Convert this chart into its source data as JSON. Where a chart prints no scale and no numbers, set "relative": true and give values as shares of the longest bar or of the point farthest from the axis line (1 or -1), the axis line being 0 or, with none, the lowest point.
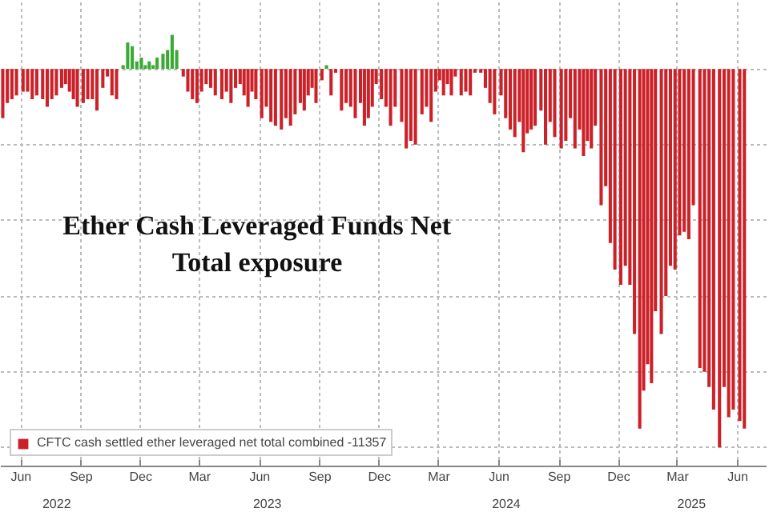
{
  "chart_data": {
    "type": "bar",
    "relative": true,
    "title": "Ether Cash Leveraged Funds Net\nTotal exposure",
    "x": [
      "2022-05-04",
      "2022-05-11",
      "2022-05-18",
      "2022-05-25",
      "2022-06-04",
      "2022-06-11",
      "2022-06-18",
      "2022-06-25",
      "2022-07-04",
      "2022-07-11",
      "2022-07-18",
      "2022-07-25",
      "2022-08-02",
      "2022-08-08",
      "2022-08-14",
      "2022-08-20",
      "2022-08-26",
      "2022-09-04",
      "2022-09-11",
      "2022-09-18",
      "2022-09-25",
      "2022-10-04",
      "2022-10-11",
      "2022-10-18",
      "2022-10-25",
      "2022-11-04",
      "2022-11-11",
      "2022-11-18",
      "2022-11-25",
      "2022-12-02",
      "2022-12-08",
      "2022-12-14",
      "2022-12-20",
      "2022-12-26",
      "2023-01-04",
      "2023-01-11",
      "2023-01-18",
      "2023-01-25",
      "2023-02-04",
      "2023-02-11",
      "2023-02-18",
      "2023-02-25",
      "2023-03-04",
      "2023-03-11",
      "2023-03-18",
      "2023-03-25",
      "2023-04-04",
      "2023-04-11",
      "2023-04-18",
      "2023-04-25",
      "2023-05-02",
      "2023-05-08",
      "2023-05-14",
      "2023-05-20",
      "2023-05-26",
      "2023-06-04",
      "2023-06-11",
      "2023-06-18",
      "2023-06-25",
      "2023-07-04",
      "2023-07-11",
      "2023-07-18",
      "2023-07-25",
      "2023-08-02",
      "2023-08-08",
      "2023-08-14",
      "2023-08-20",
      "2023-08-26",
      "2023-09-04",
      "2023-09-11",
      "2023-09-18",
      "2023-09-25",
      "2023-10-04",
      "2023-10-11",
      "2023-10-18",
      "2023-10-25",
      "2023-11-02",
      "2023-11-08",
      "2023-11-14",
      "2023-11-20",
      "2023-11-26",
      "2023-12-04",
      "2023-12-11",
      "2023-12-18",
      "2023-12-25",
      "2024-01-04",
      "2024-01-11",
      "2024-01-18",
      "2024-01-25",
      "2024-02-04",
      "2024-02-11",
      "2024-02-18",
      "2024-02-25",
      "2024-03-02",
      "2024-03-08",
      "2024-03-14",
      "2024-03-20",
      "2024-03-26",
      "2024-04-04",
      "2024-04-11",
      "2024-04-18",
      "2024-04-25",
      "2024-05-04",
      "2024-05-11",
      "2024-05-18",
      "2024-05-25",
      "2024-06-04",
      "2024-06-11",
      "2024-06-18",
      "2024-06-25",
      "2024-07-02",
      "2024-07-08",
      "2024-07-14",
      "2024-07-20",
      "2024-07-26",
      "2024-08-04",
      "2024-08-11",
      "2024-08-18",
      "2024-08-25",
      "2024-09-04",
      "2024-09-11",
      "2024-09-18",
      "2024-09-25",
      "2024-10-02",
      "2024-10-08",
      "2024-10-14",
      "2024-10-20",
      "2024-10-26",
      "2024-11-04",
      "2024-11-11",
      "2024-11-18",
      "2024-11-25",
      "2024-12-04",
      "2024-12-11",
      "2024-12-18",
      "2024-12-25",
      "2025-01-02",
      "2025-01-08",
      "2025-01-14",
      "2025-01-20",
      "2025-01-26",
      "2025-02-04",
      "2025-02-11",
      "2025-02-18",
      "2025-02-25",
      "2025-03-04",
      "2025-03-11",
      "2025-03-18",
      "2025-03-25",
      "2025-04-04",
      "2025-04-11",
      "2025-04-18",
      "2025-04-25",
      "2025-05-04",
      "2025-05-11",
      "2025-05-18",
      "2025-05-25",
      "2025-06-04",
      "2025-06-11"
    ],
    "series": [
      {
        "name": "CFTC cash settled ether leveraged net total combined -11357",
        "values": [
          -0.13,
          -0.09,
          -0.08,
          -0.07,
          -0.06,
          -0.06,
          -0.08,
          -0.07,
          -0.08,
          -0.1,
          -0.08,
          -0.07,
          -0.05,
          -0.04,
          -0.06,
          -0.08,
          -0.1,
          -0.09,
          -0.08,
          -0.08,
          -0.11,
          -0.05,
          -0.02,
          -0.07,
          -0.08,
          0.01,
          0.07,
          0.06,
          0.02,
          0.03,
          0.01,
          0.02,
          0.01,
          0.03,
          0.04,
          0.05,
          0.09,
          0.05,
          -0.02,
          -0.06,
          -0.08,
          -0.09,
          -0.06,
          -0.04,
          -0.05,
          -0.07,
          -0.08,
          -0.06,
          -0.09,
          -0.05,
          -0.04,
          -0.07,
          -0.1,
          -0.06,
          -0.08,
          -0.13,
          -0.1,
          -0.14,
          -0.15,
          -0.16,
          -0.13,
          -0.15,
          -0.12,
          -0.09,
          -0.11,
          -0.07,
          -0.05,
          -0.09,
          -0.03,
          0.01,
          -0.07,
          -0.01,
          -0.11,
          -0.09,
          -0.1,
          -0.13,
          -0.09,
          -0.15,
          -0.13,
          -0.1,
          -0.04,
          -0.08,
          -0.1,
          -0.15,
          -0.1,
          -0.14,
          -0.21,
          -0.19,
          -0.2,
          -0.12,
          -0.1,
          -0.14,
          -0.06,
          -0.03,
          -0.07,
          -0.04,
          -0.07,
          -0.02,
          -0.07,
          -0.06,
          -0.07,
          -0.01,
          -0.01,
          -0.05,
          -0.09,
          -0.12,
          -0.07,
          -0.13,
          -0.16,
          -0.18,
          -0.14,
          -0.22,
          -0.17,
          -0.16,
          -0.15,
          -0.11,
          -0.2,
          -0.14,
          -0.18,
          -0.21,
          -0.19,
          -0.13,
          -0.21,
          -0.16,
          -0.23,
          -0.19,
          -0.21,
          -0.15,
          -0.36,
          -0.31,
          -0.46,
          -0.53,
          -0.57,
          -0.52,
          -0.57,
          -0.7,
          -0.95,
          -0.85,
          -0.78,
          -0.83,
          -0.64,
          -0.7,
          -0.6,
          -0.52,
          -0.53,
          -0.44,
          -0.43,
          -0.45,
          -0.36,
          -0.79,
          -0.8,
          -0.84,
          -0.9,
          -1.0,
          -0.84,
          -0.92,
          -0.9,
          -0.93,
          -0.95
        ],
        "colors": [
          "#cc2128",
          "#cc2128",
          "#cc2128",
          "#cc2128",
          "#cc2128",
          "#cc2128",
          "#cc2128",
          "#cc2128",
          "#cc2128",
          "#cc2128",
          "#cc2128",
          "#cc2128",
          "#cc2128",
          "#cc2128",
          "#cc2128",
          "#cc2128",
          "#cc2128",
          "#cc2128",
          "#cc2128",
          "#cc2128",
          "#cc2128",
          "#cc2128",
          "#cc2128",
          "#cc2128",
          "#cc2128",
          "#3aaa35",
          "#3aaa35",
          "#3aaa35",
          "#3aaa35",
          "#3aaa35",
          "#3aaa35",
          "#3aaa35",
          "#3aaa35",
          "#3aaa35",
          "#3aaa35",
          "#3aaa35",
          "#3aaa35",
          "#3aaa35",
          "#cc2128",
          "#cc2128",
          "#cc2128",
          "#cc2128",
          "#cc2128",
          "#cc2128",
          "#cc2128",
          "#cc2128",
          "#cc2128",
          "#cc2128",
          "#cc2128",
          "#cc2128",
          "#cc2128",
          "#cc2128",
          "#cc2128",
          "#cc2128",
          "#cc2128",
          "#cc2128",
          "#cc2128",
          "#cc2128",
          "#cc2128",
          "#cc2128",
          "#cc2128",
          "#cc2128",
          "#cc2128",
          "#cc2128",
          "#cc2128",
          "#cc2128",
          "#cc2128",
          "#cc2128",
          "#cc2128",
          "#3aaa35",
          "#cc2128",
          "#cc2128",
          "#cc2128",
          "#cc2128",
          "#cc2128",
          "#cc2128",
          "#cc2128",
          "#cc2128",
          "#cc2128",
          "#cc2128",
          "#cc2128",
          "#cc2128",
          "#cc2128",
          "#cc2128",
          "#cc2128",
          "#cc2128",
          "#cc2128",
          "#cc2128",
          "#cc2128",
          "#cc2128",
          "#cc2128",
          "#cc2128",
          "#cc2128",
          "#cc2128",
          "#cc2128",
          "#cc2128",
          "#cc2128",
          "#cc2128",
          "#cc2128",
          "#cc2128",
          "#cc2128",
          "#cc2128",
          "#cc2128",
          "#cc2128",
          "#cc2128",
          "#cc2128",
          "#cc2128",
          "#cc2128",
          "#cc2128",
          "#cc2128",
          "#cc2128",
          "#cc2128",
          "#cc2128",
          "#cc2128",
          "#cc2128",
          "#cc2128",
          "#cc2128",
          "#cc2128",
          "#cc2128",
          "#cc2128",
          "#cc2128",
          "#cc2128",
          "#cc2128",
          "#cc2128",
          "#cc2128",
          "#cc2128",
          "#cc2128",
          "#cc2128",
          "#cc2128",
          "#cc2128",
          "#cc2128",
          "#cc2128",
          "#cc2128",
          "#cc2128",
          "#cc2128",
          "#cc2128",
          "#cc2128",
          "#cc2128",
          "#cc2128",
          "#cc2128",
          "#cc2128",
          "#cc2128",
          "#cc2128",
          "#cc2128",
          "#cc2128",
          "#cc2128",
          "#cc2128",
          "#cc2128",
          "#cc2128",
          "#cc2128",
          "#cc2128",
          "#cc2128",
          "#cc2128",
          "#cc2128",
          "#cc2128",
          "#cc2128",
          "#cc2128",
          "#cc2128",
          "#cc2128"
        ]
      }
    ],
    "xlim": [
      "2022-05-01",
      "2025-07-15"
    ],
    "xticks": [
      {
        "value": "2022-06-01",
        "label": "Jun"
      },
      {
        "value": "2022-09-01",
        "label": "Sep"
      },
      {
        "value": "2022-12-01",
        "label": "Dec"
      },
      {
        "value": "2023-03-01",
        "label": "Mar"
      },
      {
        "value": "2023-06-01",
        "label": "Jun"
      },
      {
        "value": "2023-09-01",
        "label": "Sep"
      },
      {
        "value": "2023-12-01",
        "label": "Dec"
      },
      {
        "value": "2024-03-01",
        "label": "Mar"
      },
      {
        "value": "2024-06-01",
        "label": "Jun"
      },
      {
        "value": "2024-09-01",
        "label": "Sep"
      },
      {
        "value": "2024-12-01",
        "label": "Dec"
      },
      {
        "value": "2025-03-01",
        "label": "Mar"
      },
      {
        "value": "2025-06-01",
        "label": "Jun"
      }
    ],
    "annotations": [
      "2022",
      "2023",
      "2024",
      "2025"
    ],
    "grid": true,
    "legend": "bottom left"
  }
}
